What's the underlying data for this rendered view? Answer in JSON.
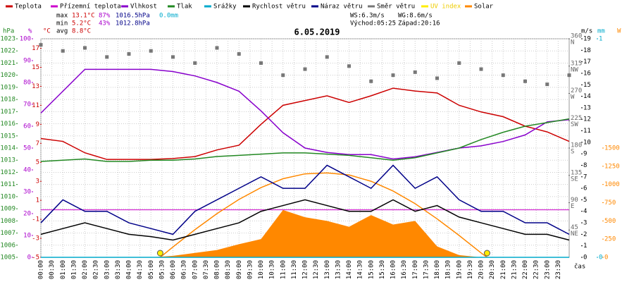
{
  "chart_data": {
    "type": "line",
    "title": "6.05.2019",
    "legend": true,
    "stats": [
      [
        "max",
        "13.1°C",
        "87%",
        "1016.5hPa",
        "0.0mm"
      ],
      [
        "min",
        "5.2°C",
        "43%",
        "1012.8hPa"
      ],
      [
        "avg",
        "8.8°C"
      ]
    ],
    "info": [
      "WS:6.3m/s",
      "WG:8.6m/s",
      "Východ:05:25",
      "Západ:20:16"
    ],
    "xlabel": "čas",
    "xlim": [
      0,
      24
    ],
    "xticks": [
      {
        "value": 0,
        "label": "00:00"
      },
      {
        "value": 0.5,
        "label": "00:30"
      },
      {
        "value": 1,
        "label": "01:00"
      },
      {
        "value": 1.5,
        "label": "01:30"
      },
      {
        "value": 2,
        "label": "02:00"
      },
      {
        "value": 2.5,
        "label": "02:30"
      },
      {
        "value": 3,
        "label": "03:00"
      },
      {
        "value": 3.5,
        "label": "03:30"
      },
      {
        "value": 4,
        "label": "04:00"
      },
      {
        "value": 4.5,
        "label": "04:30"
      },
      {
        "value": 5,
        "label": "05:00"
      },
      {
        "value": 5.5,
        "label": "05:30"
      },
      {
        "value": 6,
        "label": "06:00"
      },
      {
        "value": 6.5,
        "label": "06:30"
      },
      {
        "value": 7,
        "label": "07:00"
      },
      {
        "value": 7.5,
        "label": "07:30"
      },
      {
        "value": 8,
        "label": "08:00"
      },
      {
        "value": 8.5,
        "label": "08:30"
      },
      {
        "value": 9,
        "label": "09:00"
      },
      {
        "value": 9.5,
        "label": "09:30"
      },
      {
        "value": 10,
        "label": "10:00"
      },
      {
        "value": 10.5,
        "label": "10:30"
      },
      {
        "value": 11,
        "label": "11:00"
      },
      {
        "value": 11.5,
        "label": "11:30"
      },
      {
        "value": 12,
        "label": "12:00"
      },
      {
        "value": 12.5,
        "label": "12:30"
      },
      {
        "value": 13,
        "label": "13:00"
      },
      {
        "value": 13.5,
        "label": "13:30"
      },
      {
        "value": 14,
        "label": "14:00"
      },
      {
        "value": 14.5,
        "label": "14:30"
      },
      {
        "value": 15,
        "label": "15:00"
      },
      {
        "value": 15.5,
        "label": "15:30"
      },
      {
        "value": 16,
        "label": "16:00"
      },
      {
        "value": 16.5,
        "label": "16:30"
      },
      {
        "value": 17,
        "label": "17:00"
      },
      {
        "value": 17.5,
        "label": "17:30"
      },
      {
        "value": 18,
        "label": "18:00"
      },
      {
        "value": 18.5,
        "label": "18:30"
      },
      {
        "value": 19,
        "label": "19:00"
      },
      {
        "value": 19.5,
        "label": "19:30"
      },
      {
        "value": 20,
        "label": "20:00"
      },
      {
        "value": 20.5,
        "label": "20:30"
      },
      {
        "value": 21,
        "label": "21:00"
      },
      {
        "value": 21.5,
        "label": "21:30"
      },
      {
        "value": 22,
        "label": "22:00"
      },
      {
        "value": 22.5,
        "label": "22:30"
      },
      {
        "value": 23,
        "label": "23:00"
      },
      {
        "value": 23.5,
        "label": "23:30"
      }
    ],
    "axes": {
      "hpa": {
        "title": "hPa",
        "color": "#228822",
        "ylim": [
          1005,
          1023
        ],
        "yticks": [
          1005,
          1006,
          1007,
          1008,
          1009,
          1010,
          1011,
          1012,
          1013,
          1014,
          1015,
          1016,
          1017,
          1018,
          1019,
          1020,
          1021,
          1022,
          1023
        ]
      },
      "pct": {
        "title": "%",
        "color": "#aa00cc",
        "ylim": [
          0,
          100
        ],
        "yticks": [
          0,
          10,
          20,
          30,
          40,
          50,
          60,
          70,
          80,
          90,
          100
        ]
      },
      "temp": {
        "title": "°C",
        "color": "#cc0000",
        "ylim": [
          -5,
          18
        ],
        "yticks": [
          -5,
          -3,
          -1,
          1,
          3,
          5,
          7,
          9,
          11,
          13,
          15,
          17
        ]
      },
      "dir": {
        "color": "#666666",
        "ylim": [
          0,
          360
        ],
        "yticks": [
          45,
          90,
          135,
          180,
          225,
          270,
          315,
          360
        ],
        "compass": [
          "NE",
          "E",
          "SE",
          "S",
          "SW",
          "W",
          "NW",
          "N"
        ]
      },
      "ms": {
        "title": "m/s",
        "color": "#000000",
        "ylim": [
          0,
          19
        ],
        "yticks": [
          0,
          1,
          2,
          3,
          4,
          5,
          6,
          7,
          8,
          9,
          10,
          11,
          12,
          13,
          14,
          15,
          16,
          17,
          18,
          19
        ]
      },
      "mm": {
        "title": "mm",
        "color": "#00aacc",
        "ylim": [
          0,
          1
        ],
        "yticks": [
          0,
          1
        ]
      },
      "w": {
        "title": "W",
        "color": "#ff8800",
        "ylim": [
          0,
          3000
        ],
        "yticks": [
          0,
          250,
          500,
          750,
          1000,
          1250,
          1500
        ]
      }
    },
    "x": [
      0,
      1,
      2,
      3,
      4,
      5,
      6,
      7,
      8,
      9,
      10,
      11,
      12,
      13,
      14,
      15,
      16,
      17,
      18,
      19,
      20,
      21,
      22,
      23,
      24
    ],
    "series": [
      {
        "name": "Teplota",
        "color": "#cc0000",
        "axis": "temp",
        "values": [
          7.5,
          7.2,
          6,
          5.3,
          5.3,
          5.3,
          5.4,
          5.6,
          6.3,
          6.8,
          9,
          11,
          11.5,
          12,
          11.3,
          12,
          12.8,
          12.5,
          12.3,
          11,
          10.3,
          9.8,
          8.8,
          8.2,
          7.2
        ]
      },
      {
        "name": "Přízemní teplota",
        "color": "#cc00cc"
      },
      {
        "name": "Vlhkost",
        "color": "#8800cc",
        "axis": "pct",
        "values": [
          66,
          76,
          86,
          86,
          86,
          86,
          85,
          83,
          80,
          76,
          67,
          57,
          50,
          48,
          47,
          47,
          45,
          46,
          48,
          50,
          51,
          53,
          56,
          62,
          63
        ]
      },
      {
        "name": "Tlak",
        "color": "#228822",
        "axis": "hpa",
        "values": [
          1012.9,
          1013,
          1013.1,
          1012.9,
          1012.9,
          1013,
          1013,
          1013.1,
          1013.3,
          1013.4,
          1013.5,
          1013.6,
          1013.6,
          1013.5,
          1013.4,
          1013.2,
          1013,
          1013.2,
          1013.6,
          1014,
          1014.7,
          1015.3,
          1015.8,
          1016.1,
          1016.4
        ]
      },
      {
        "name": "Srážky",
        "color": "#00aacc",
        "axis": "mm",
        "values": [
          0,
          0,
          0,
          0,
          0,
          0,
          0,
          0,
          0,
          0,
          0,
          0,
          0,
          0,
          0,
          0,
          0,
          0,
          0,
          0,
          0,
          0,
          0,
          0,
          0
        ]
      },
      {
        "name": "Rychlost větru",
        "color": "#000000",
        "axis": "ms",
        "values": [
          2,
          2.5,
          3,
          2.5,
          2,
          1.8,
          1.5,
          2,
          2.5,
          3,
          4,
          4.5,
          5,
          4.5,
          4,
          4,
          5,
          4,
          4.5,
          3.5,
          3,
          2.5,
          2,
          2,
          1.5
        ]
      },
      {
        "name": "Náraz větru",
        "color": "#000088",
        "axis": "ms",
        "values": [
          3,
          5,
          4,
          4,
          3,
          2.5,
          2,
          4,
          5,
          6,
          7,
          6,
          6,
          8,
          7,
          6,
          8,
          6,
          7,
          5,
          4,
          4,
          3,
          3,
          2
        ]
      },
      {
        "name": "Směr větru",
        "color": "#777777",
        "axis": "dir",
        "kind": "points",
        "values": [
          350,
          340,
          345,
          330,
          335,
          340,
          330,
          320,
          345,
          335,
          320,
          300,
          310,
          330,
          315,
          290,
          300,
          305,
          295,
          320,
          310,
          300,
          290,
          285,
          300
        ]
      },
      {
        "name": "UV index",
        "color": "#ffee00",
        "axis": "mm",
        "kind": "dots",
        "x": [
          5.42,
          20.27
        ],
        "values": [
          0,
          0
        ]
      },
      {
        "name": "Solar",
        "color": "#ff8800",
        "axis": "w",
        "kind": "area",
        "values": [
          0,
          0,
          0,
          0,
          0,
          0,
          20,
          60,
          100,
          180,
          250,
          650,
          550,
          500,
          420,
          580,
          450,
          500,
          150,
          30,
          0,
          0,
          0,
          0,
          0
        ]
      }
    ],
    "clear_sky": {
      "color": "#ff8800",
      "axis": "w",
      "x": [
        5.42,
        6,
        7,
        8,
        9,
        10,
        11,
        12,
        13,
        14,
        15,
        16,
        17,
        18,
        19,
        20,
        20.27
      ],
      "values": [
        0,
        142,
        380,
        600,
        795,
        957,
        1079,
        1146,
        1159,
        1131,
        1044,
        910,
        737,
        528,
        300,
        60,
        0
      ]
    }
  }
}
